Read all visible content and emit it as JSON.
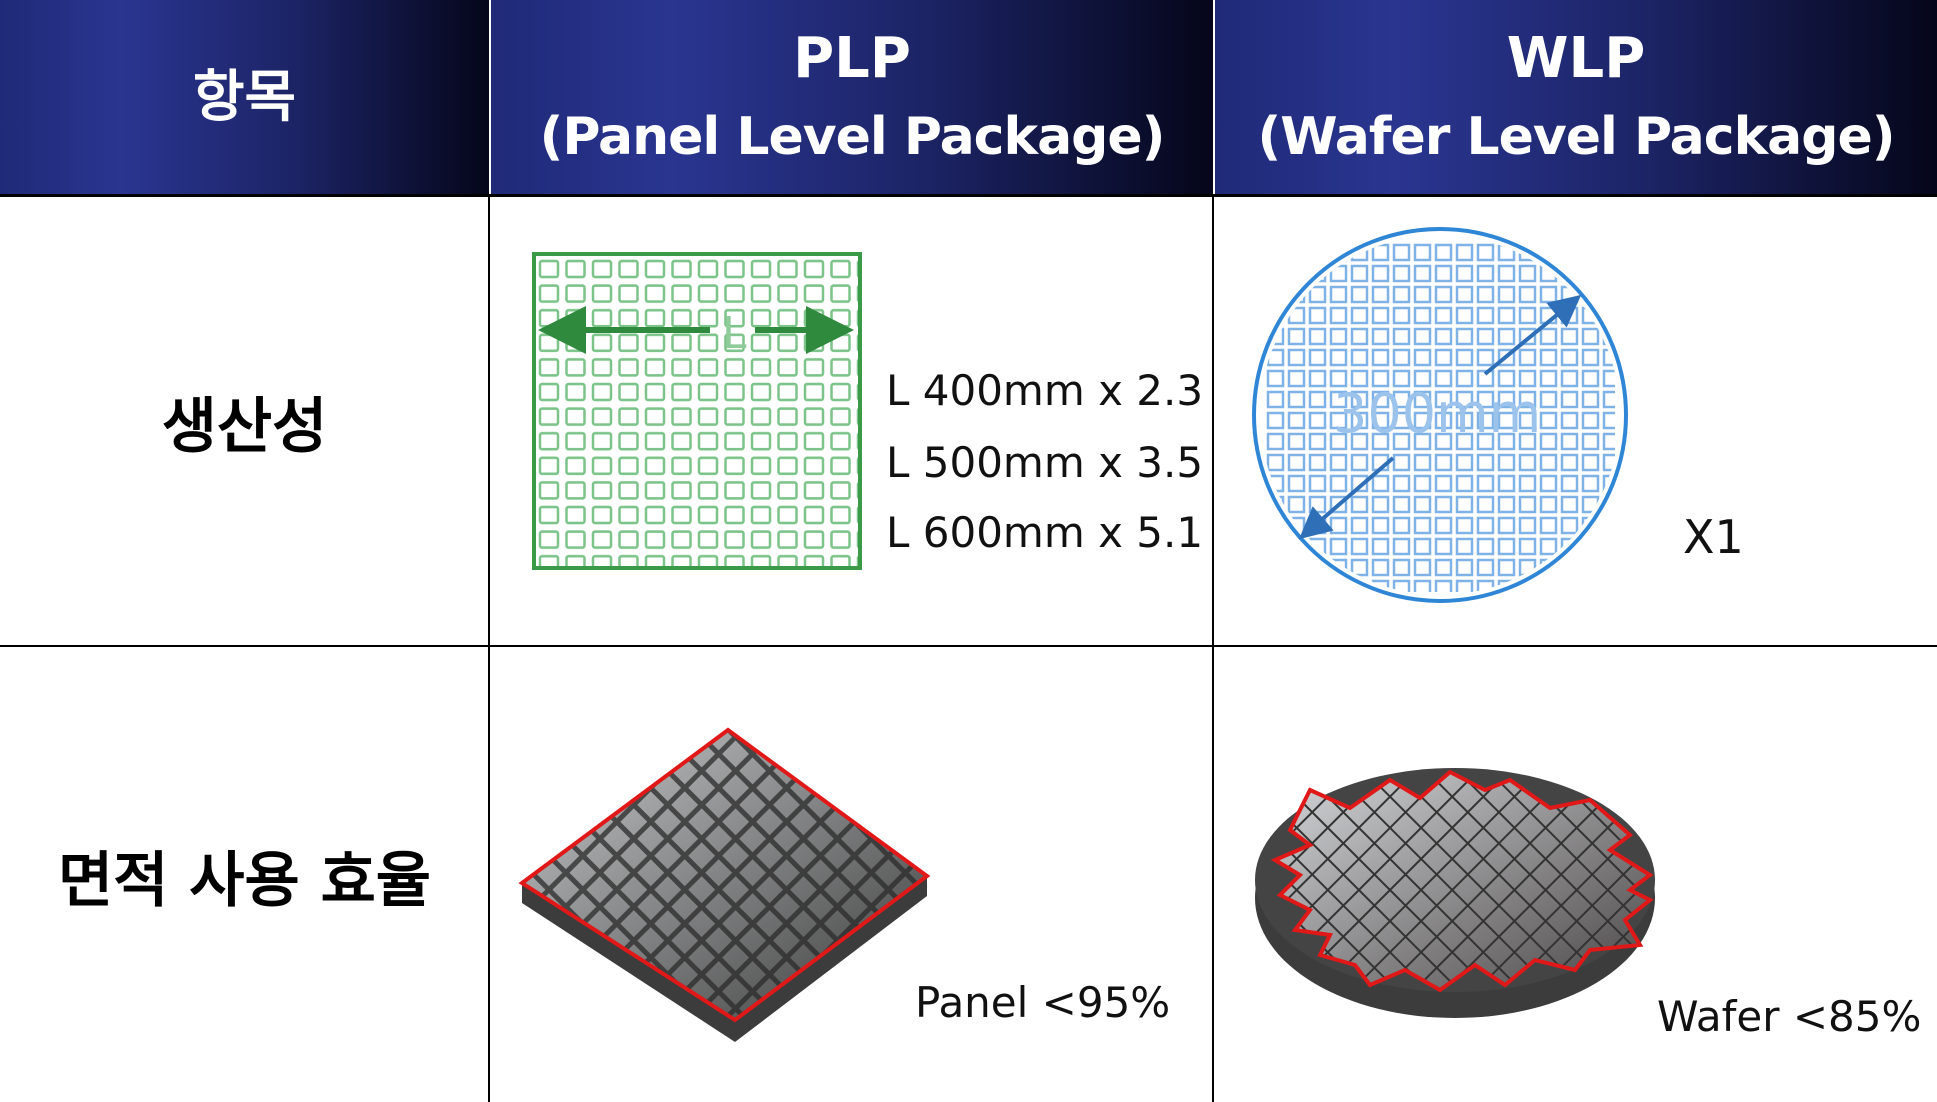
{
  "header": {
    "col1": "항목",
    "col2_line1": "PLP",
    "col2_line2": "(Panel Level Package)",
    "col3_line1": "WLP",
    "col3_line2": "(Wafer Level Package)"
  },
  "rows": [
    {
      "label": "생산성",
      "plp": {
        "diagram_label": "L",
        "specs": [
          "L 400mm x 2.3",
          "L 500mm x 3.5",
          "L 600mm x 5.1"
        ]
      },
      "wlp": {
        "diagram_label": "300mm",
        "multiplier": "X1"
      }
    },
    {
      "label": "면적 사용 효율",
      "plp": {
        "caption": "Panel  <95%"
      },
      "wlp": {
        "caption": "Wafer  <85%"
      }
    }
  ],
  "colors": {
    "header_gradient_start": "#2a3590",
    "header_gradient_end": "#05061a",
    "panel_green": "#3a9a48",
    "wafer_blue": "#2f86d6",
    "outline_red": "#e01818"
  }
}
